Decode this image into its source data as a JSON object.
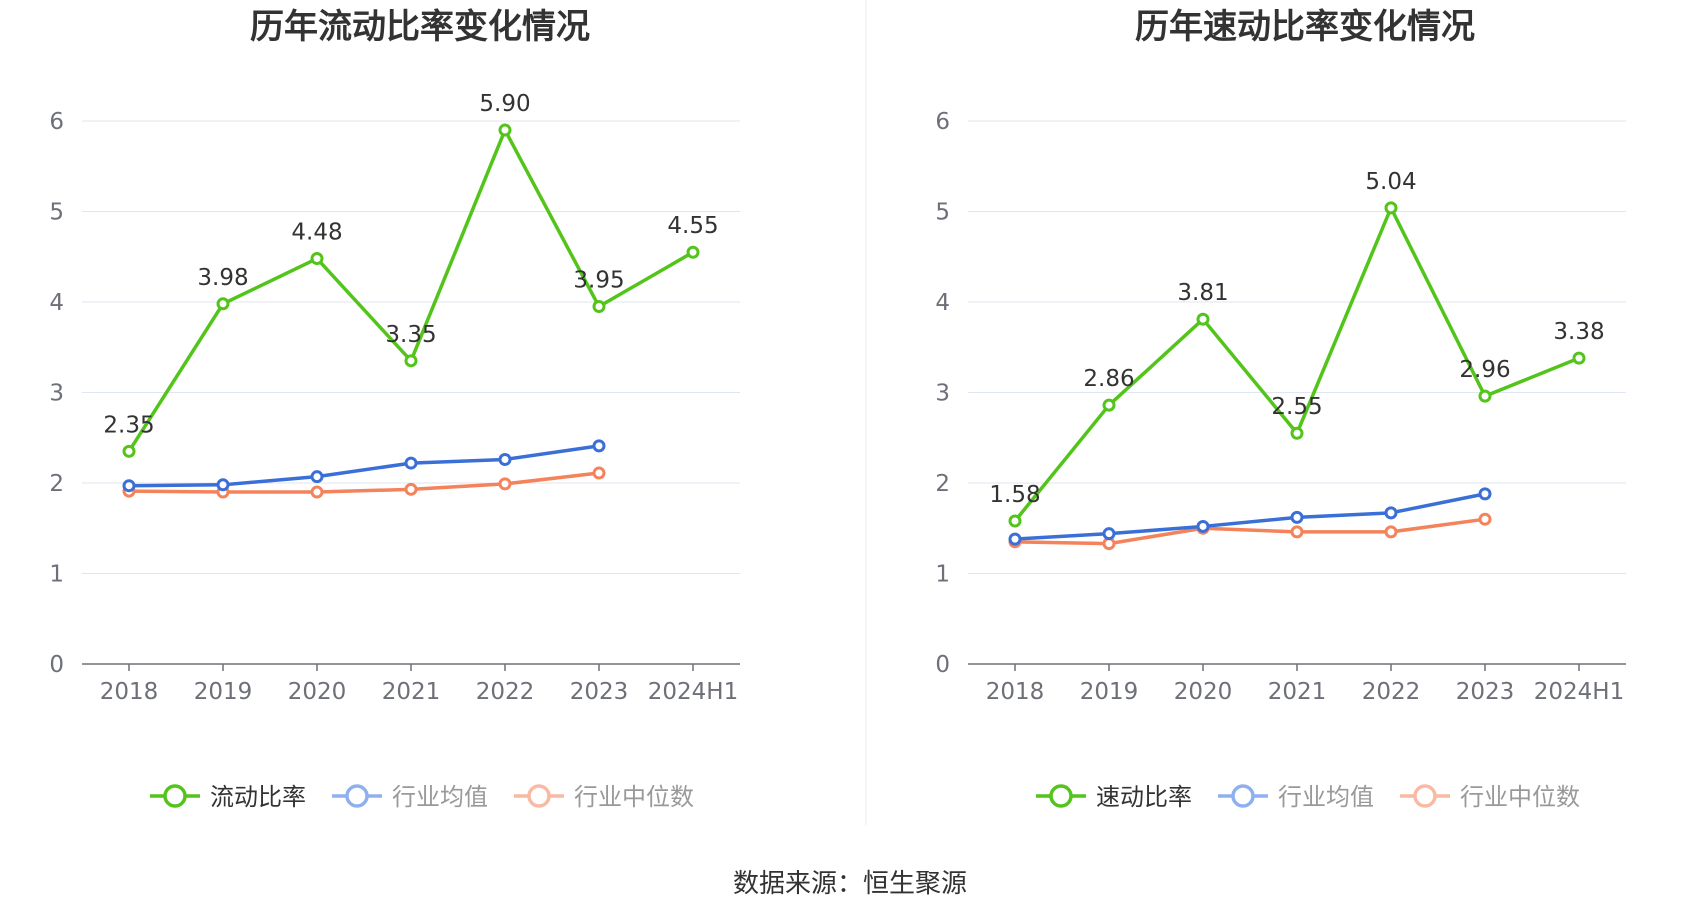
{
  "colors": {
    "main_series": "#52c41a",
    "industry_avg": "#3b6fd8",
    "industry_median": "#f4825a",
    "legend_avg_dim": "#8fb0f0",
    "legend_median_dim": "#f9b9a2",
    "legend_text_active": "#333333",
    "legend_text_dim": "#999999",
    "grid": "#e0e6f1",
    "axis": "#6e7079"
  },
  "source": "数据来源：恒生聚源",
  "chart_data": [
    {
      "type": "line",
      "title": "历年流动比率变化情况",
      "categories": [
        "2018",
        "2019",
        "2020",
        "2021",
        "2022",
        "2023",
        "2024H1"
      ],
      "ylim": [
        0,
        6
      ],
      "yticks": [
        0,
        1,
        2,
        3,
        4,
        5,
        6
      ],
      "grid": true,
      "legend_position": "bottom",
      "series": [
        {
          "name": "流动比率",
          "values": [
            2.35,
            3.98,
            4.48,
            3.35,
            5.9,
            3.95,
            4.55
          ],
          "labels": [
            "2.35",
            "3.98",
            "4.48",
            "3.35",
            "5.90",
            "3.95",
            "4.55"
          ]
        },
        {
          "name": "行业均值",
          "values": [
            1.97,
            1.98,
            2.07,
            2.22,
            2.26,
            2.41,
            null
          ]
        },
        {
          "name": "行业中位数",
          "values": [
            1.91,
            1.9,
            1.9,
            1.93,
            1.99,
            2.11,
            null
          ]
        }
      ]
    },
    {
      "type": "line",
      "title": "历年速动比率变化情况",
      "categories": [
        "2018",
        "2019",
        "2020",
        "2021",
        "2022",
        "2023",
        "2024H1"
      ],
      "ylim": [
        0,
        6
      ],
      "yticks": [
        0,
        1,
        2,
        3,
        4,
        5,
        6
      ],
      "grid": true,
      "legend_position": "bottom",
      "series": [
        {
          "name": "速动比率",
          "values": [
            1.58,
            2.86,
            3.81,
            2.55,
            5.04,
            2.96,
            3.38
          ],
          "labels": [
            "1.58",
            "2.86",
            "3.81",
            "2.55",
            "5.04",
            "2.96",
            "3.38"
          ]
        },
        {
          "name": "行业均值",
          "values": [
            1.38,
            1.44,
            1.52,
            1.62,
            1.67,
            1.88,
            null
          ]
        },
        {
          "name": "行业中位数",
          "values": [
            1.35,
            1.33,
            1.5,
            1.46,
            1.46,
            1.6,
            null
          ]
        }
      ]
    }
  ]
}
